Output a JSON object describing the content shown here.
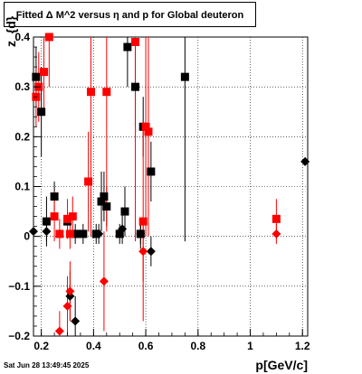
{
  "window": {
    "title": "Fitted Δ M^2 versus η and p for Global deuteron",
    "datestamp": "Sat Jun 28 13:49:45 2025"
  },
  "colors": {
    "series_black": "#000000",
    "series_red": "#ff0000",
    "background": "#ffffff"
  },
  "chart_data": {
    "type": "scatter",
    "title": "Fitted Δ M^2 versus η and p for Global deuteron",
    "xlabel": "p[GeV/c]",
    "ylabel": "z_{d}",
    "xlim": [
      0.17,
      1.22
    ],
    "ylim": [
      -0.2,
      0.4
    ],
    "grid": true,
    "x_ticks": [
      {
        "value": 0.2,
        "label": "0.2"
      },
      {
        "value": 0.4,
        "label": "0.4"
      },
      {
        "value": 0.6,
        "label": "0.6"
      },
      {
        "value": 0.8,
        "label": "0.8"
      },
      {
        "value": 1.0,
        "label": "1"
      },
      {
        "value": 1.2,
        "label": "1.2"
      }
    ],
    "y_ticks": [
      {
        "value": -0.2,
        "label": "−0.2"
      },
      {
        "value": -0.1,
        "label": "−0.1"
      },
      {
        "value": 0.0,
        "label": "0"
      },
      {
        "value": 0.1,
        "label": "0.1"
      },
      {
        "value": 0.2,
        "label": "0.2"
      },
      {
        "value": 0.3,
        "label": "0.3"
      },
      {
        "value": 0.4,
        "label": "0.4"
      }
    ],
    "series": [
      {
        "marker": "square",
        "color": "#000000",
        "points": [
          {
            "x": 0.18,
            "y": 0.32,
            "err": 0.06
          },
          {
            "x": 0.2,
            "y": 0.25,
            "err": 0.09
          },
          {
            "x": 0.22,
            "y": 0.03,
            "err": 0.05
          },
          {
            "x": 0.25,
            "y": 0.08,
            "err": 0.03
          },
          {
            "x": 0.3,
            "y": 0.03,
            "err": 0.02
          },
          {
            "x": 0.33,
            "y": 0.005,
            "err": 0.02
          },
          {
            "x": 0.36,
            "y": 0.005,
            "err": 0.02
          },
          {
            "x": 0.41,
            "y": 0.005,
            "err": 0.02
          },
          {
            "x": 0.43,
            "y": 0.07,
            "err": 0.06
          },
          {
            "x": 0.44,
            "y": 0.08,
            "err": 0.05
          },
          {
            "x": 0.45,
            "y": 0.06,
            "err": 0.04
          },
          {
            "x": 0.5,
            "y": 0.005,
            "err": 0.02
          },
          {
            "x": 0.52,
            "y": 0.05,
            "err": 0.05
          },
          {
            "x": 0.53,
            "y": 0.38,
            "err": 0.08
          },
          {
            "x": 0.56,
            "y": 0.3,
            "err": 0.08
          },
          {
            "x": 0.58,
            "y": 0.005,
            "err": 0.03
          },
          {
            "x": 0.59,
            "y": 0.22,
            "err": 0.06
          },
          {
            "x": 0.62,
            "y": 0.13,
            "err": 0.06
          },
          {
            "x": 0.75,
            "y": 0.32,
            "err": 0.33
          }
        ]
      },
      {
        "marker": "square",
        "color": "#ff0000",
        "points": [
          {
            "x": 0.18,
            "y": 0.28,
            "err": 0.06
          },
          {
            "x": 0.19,
            "y": 0.3,
            "err": 0.07
          },
          {
            "x": 0.21,
            "y": 0.33,
            "err": 0.08
          },
          {
            "x": 0.23,
            "y": 0.4,
            "err": 0.1
          },
          {
            "x": 0.25,
            "y": 0.04,
            "err": 0.05
          },
          {
            "x": 0.27,
            "y": 0.005,
            "err": 0.03
          },
          {
            "x": 0.3,
            "y": 0.035,
            "err": 0.04
          },
          {
            "x": 0.31,
            "y": 0.005,
            "err": 0.03
          },
          {
            "x": 0.32,
            "y": 0.04,
            "err": 0.04
          },
          {
            "x": 0.38,
            "y": 0.11,
            "err": 0.1
          },
          {
            "x": 0.39,
            "y": 0.29,
            "err": 0.29
          },
          {
            "x": 0.45,
            "y": 0.29,
            "err": 0.28
          },
          {
            "x": 0.56,
            "y": 0.39,
            "err": 0.4
          },
          {
            "x": 0.59,
            "y": 0.03,
            "err": 0.2
          },
          {
            "x": 0.6,
            "y": 0.22,
            "err": 0.22
          },
          {
            "x": 0.61,
            "y": 0.21,
            "err": 0.21
          },
          {
            "x": 1.1,
            "y": 0.035,
            "err": 0.04
          }
        ]
      },
      {
        "marker": "diamond",
        "color": "#000000",
        "points": [
          {
            "x": 0.17,
            "y": 0.01,
            "err": 0.02
          },
          {
            "x": 0.22,
            "y": 0.01,
            "err": 0.02
          },
          {
            "x": 0.31,
            "y": -0.12,
            "err": 0.05
          },
          {
            "x": 0.33,
            "y": -0.17,
            "err": 0.05
          },
          {
            "x": 0.42,
            "y": 0.005,
            "err": 0.02
          },
          {
            "x": 0.51,
            "y": 0.015,
            "err": 0.03
          },
          {
            "x": 0.58,
            "y": 0.005,
            "err": 0.02
          },
          {
            "x": 0.62,
            "y": -0.03,
            "err": 0.03
          },
          {
            "x": 1.21,
            "y": 0.15,
            "err": 0.0
          }
        ]
      },
      {
        "marker": "diamond",
        "color": "#ff0000",
        "points": [
          {
            "x": 0.27,
            "y": -0.19,
            "err": 0.04
          },
          {
            "x": 0.3,
            "y": -0.14,
            "err": 0.06
          },
          {
            "x": 0.31,
            "y": -0.11,
            "err": 0.06
          },
          {
            "x": 0.44,
            "y": -0.09,
            "err": 0.1
          },
          {
            "x": 0.59,
            "y": -0.03,
            "err": 0.06
          },
          {
            "x": 1.1,
            "y": 0.005,
            "err": 0.02
          }
        ]
      }
    ]
  }
}
